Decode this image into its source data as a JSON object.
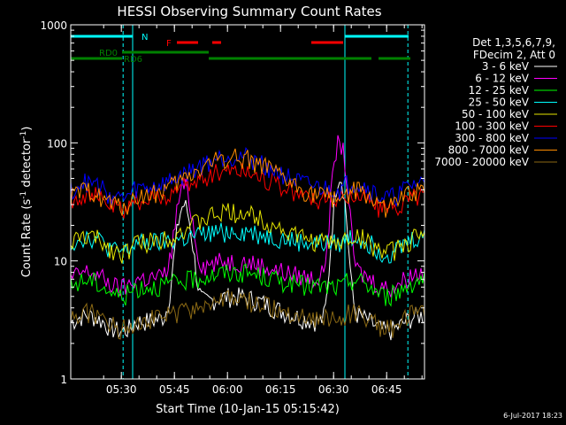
{
  "chart_data": {
    "type": "line",
    "title": "HESSI Observing Summary Count Rates",
    "xlabel": "Start Time (10-Jan-15 05:15:42)",
    "ylabel_main": "Count Rate (s",
    "ylabel_sup1": "-1",
    "ylabel_mid": " detector",
    "ylabel_sup2": "-1",
    "ylabel_end": ")",
    "yscale": "log",
    "ylim": [
      1,
      1000
    ],
    "xlim_minutes": [
      0,
      100
    ],
    "x_ticks": [
      {
        "label": "05:30",
        "minute": 14.3
      },
      {
        "label": "05:45",
        "minute": 29.3
      },
      {
        "label": "06:00",
        "minute": 44.3
      },
      {
        "label": "06:15",
        "minute": 59.3
      },
      {
        "label": "06:30",
        "minute": 74.3
      },
      {
        "label": "06:45",
        "minute": 89.3
      }
    ],
    "y_ticks": [
      {
        "label": "1",
        "value": 1
      },
      {
        "label": "10",
        "value": 10
      },
      {
        "label": "100",
        "value": 100
      },
      {
        "label": "1000",
        "value": 1000
      }
    ],
    "legend_header": [
      "Det 1,3,5,6,7,9,",
      "FDecim 2, Att 0"
    ],
    "legend_placement": "right",
    "series": [
      {
        "name": "3 - 6 keV",
        "color": "#ffffff",
        "base": 3,
        "amp": 2,
        "flares": [
          [
            32,
            26,
            2.5
          ],
          [
            76,
            50,
            2
          ]
        ]
      },
      {
        "name": "6 - 12 keV",
        "color": "#ff00ff",
        "base": 7,
        "amp": 3,
        "flares": [
          [
            32,
            35,
            2.5
          ],
          [
            76,
            95,
            2.2
          ]
        ]
      },
      {
        "name": "12 - 25 keV",
        "color": "#00ff00",
        "base": 6,
        "amp": 2,
        "flares": []
      },
      {
        "name": "25 - 50 keV",
        "color": "#00ffff",
        "base": 14,
        "amp": 4,
        "flares": []
      },
      {
        "name": "50 - 100 keV",
        "color": "#e6e600",
        "base": 14,
        "amp": 12,
        "flares": []
      },
      {
        "name": "100 - 300 keV",
        "color": "#ff0000",
        "base": 32,
        "amp": 28,
        "flares": []
      },
      {
        "name": "300 - 800 keV",
        "color": "#0000ff",
        "base": 40,
        "amp": 38,
        "flares": []
      },
      {
        "name": "800 - 7000 keV",
        "color": "#ff8c00",
        "base": 34,
        "amp": 42,
        "flares": []
      },
      {
        "name": "7000 - 20000 keV",
        "color": "#8b6914",
        "base": 3.2,
        "amp": 1.5,
        "flares": []
      }
    ],
    "night_intervals": [
      [
        0,
        17.5
      ],
      [
        77.5,
        100
      ]
    ],
    "saa_boundaries": [
      14.8,
      77.5,
      95.3
    ],
    "bars": [
      {
        "label": "N",
        "color": "#00ffff",
        "segments": [
          [
            0,
            17.5
          ],
          [
            77.5,
            95.5
          ]
        ]
      },
      {
        "label": "F",
        "color": "#ff0000",
        "segments": [
          [
            30,
            36
          ],
          [
            40,
            42.5
          ],
          [
            68,
            77
          ]
        ]
      },
      {
        "label": "RD0",
        "color": "#008000",
        "segments": [
          [
            14.5,
            39
          ]
        ]
      },
      {
        "label": "RD6",
        "color": "#008000",
        "segments": [
          [
            0,
            14.5
          ],
          [
            39,
            64
          ],
          [
            64,
            85
          ],
          [
            87,
            96
          ]
        ]
      }
    ],
    "timestamp": "6-Jul-2017 18:23"
  }
}
